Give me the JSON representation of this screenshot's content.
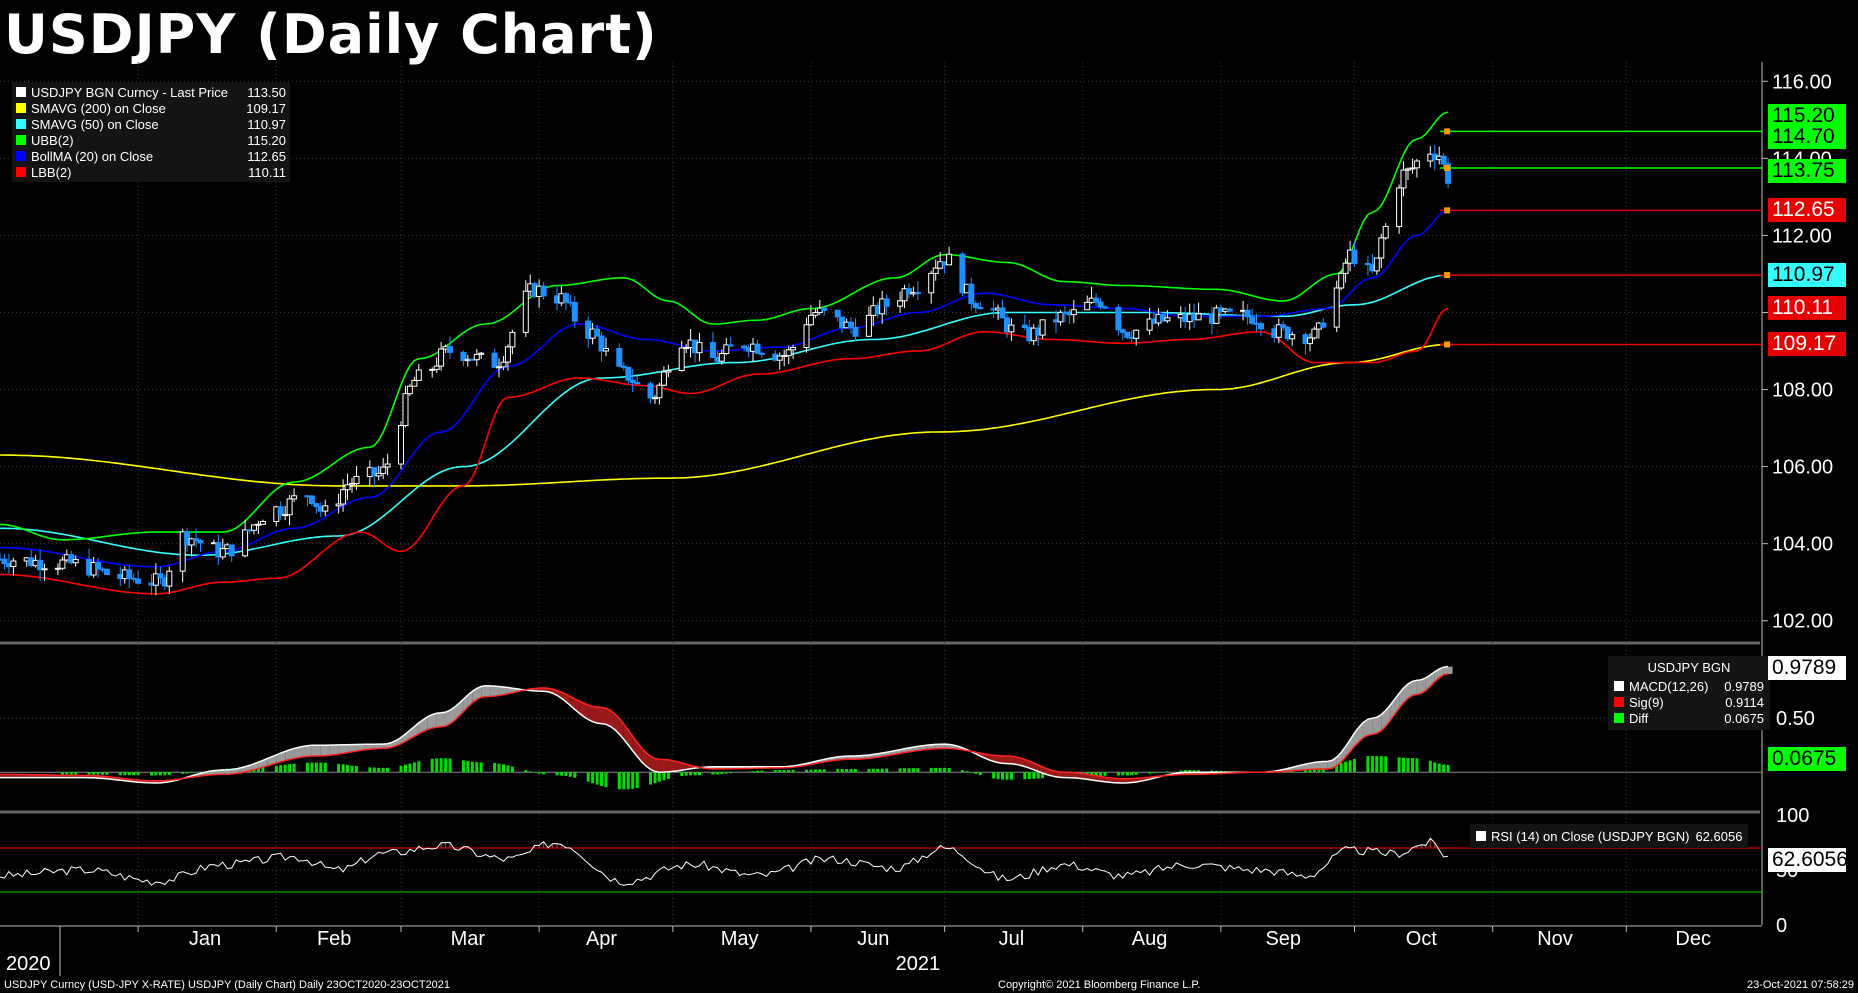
{
  "title": "USDJPY (Daily Chart)",
  "price_legend": [
    {
      "label": "USDJPY BGN Curncy - Last Price",
      "value": "113.50",
      "color": "#ffffff"
    },
    {
      "label": "SMAVG (200)  on Close",
      "value": "109.17",
      "color": "#ffff00"
    },
    {
      "label": "SMAVG (50)  on Close",
      "value": "110.97",
      "color": "#33ffff"
    },
    {
      "label": "UBB(2)",
      "value": "115.20",
      "color": "#00ff00"
    },
    {
      "label": "BollMA (20)  on Close",
      "value": "112.65",
      "color": "#0000ff"
    },
    {
      "label": "LBB(2)",
      "value": "110.11",
      "color": "#ff0000"
    }
  ],
  "price_tags": [
    {
      "text": "115.20",
      "value": 115.2,
      "bg": "#00ff00",
      "fg": "#000000"
    },
    {
      "text": "114.70",
      "value": 114.7,
      "bg": "#00ff00",
      "fg": "#000000"
    },
    {
      "text": "113.75",
      "value": 113.75,
      "bg": "#00ff00",
      "fg": "#000000"
    },
    {
      "text": "112.65",
      "value": 112.65,
      "bg": "#e60000",
      "fg": "#ffffff"
    },
    {
      "text": "110.97",
      "value": 110.97,
      "bg": "#33ffff",
      "fg": "#000000"
    },
    {
      "text": "110.11",
      "value": 110.11,
      "bg": "#e60000",
      "fg": "#ffffff"
    },
    {
      "text": "109.17",
      "value": 109.17,
      "bg": "#e60000",
      "fg": "#ffffff"
    }
  ],
  "macd_legend": {
    "heading": "USDJPY BGN",
    "rows": [
      {
        "label": "MACD(12,26)",
        "value": "0.9789",
        "color": "#ffffff"
      },
      {
        "label": "Sig(9)",
        "value": "0.9114",
        "color": "#ff0000"
      },
      {
        "label": "Diff",
        "value": "0.0675",
        "color": "#00ff00"
      }
    ]
  },
  "macd_tags": [
    {
      "text": "0.9789",
      "value": 0.9789,
      "bg": "#ffffff",
      "fg": "#000000"
    },
    {
      "text": "0.0675",
      "value": 0.0675,
      "bg": "#00ff00",
      "fg": "#000000"
    }
  ],
  "rsi_legend": {
    "label": "RSI (14)  on Close (USDJPY BGN)",
    "value": "62.6056",
    "color": "#ffffff"
  },
  "rsi_tag": {
    "text": "62.6056",
    "value": 62.6056,
    "bg": "#ffffff",
    "fg": "#000000"
  },
  "x_months": [
    "Jan",
    "Feb",
    "Mar",
    "Apr",
    "May",
    "Jun",
    "Jul",
    "Aug",
    "Sep",
    "Oct",
    "Nov",
    "Dec"
  ],
  "x_years": [
    "2020",
    "2021"
  ],
  "footer": {
    "left": "USDJPY Curncy (USD-JPY X-RATE) USDJPY (Daily Chart)  Daily 23OCT2020-23OCT2021",
    "center": "Copyright© 2021 Bloomberg Finance L.P.",
    "right": "23-Oct-2021 07:58:29"
  },
  "chart_data": {
    "type": "candlestick",
    "title": "USDJPY (Daily Chart)",
    "price_axis": {
      "ylim": [
        101.5,
        116.5
      ],
      "ticks": [
        "116.00",
        "114.00",
        "112.00",
        "110.00",
        "108.00",
        "106.00",
        "104.00",
        "102.00"
      ]
    },
    "macd_axis": {
      "ylim": [
        -0.35,
        1.15
      ],
      "ticks": [
        "0.50"
      ]
    },
    "rsi_axis": {
      "ylim": [
        0,
        100
      ],
      "ticks": [
        "100",
        "50",
        "0"
      ],
      "overbought": 70,
      "oversold": 30
    },
    "x_range": [
      "2020-12-01",
      "2021-12-31"
    ],
    "price_keypoints": [
      [
        "2020-12-01",
        103.6
      ],
      [
        "2020-12-15",
        103.5
      ],
      [
        "2020-12-31",
        103.1
      ],
      [
        "2021-01-06",
        103.0
      ],
      [
        "2021-01-11",
        104.2
      ],
      [
        "2021-01-20",
        103.8
      ],
      [
        "2021-02-01",
        104.9
      ],
      [
        "2021-02-08",
        105.3
      ],
      [
        "2021-02-12",
        104.8
      ],
      [
        "2021-02-18",
        105.6
      ],
      [
        "2021-02-24",
        105.8
      ],
      [
        "2021-03-05",
        108.3
      ],
      [
        "2021-03-12",
        109.0
      ],
      [
        "2021-03-22",
        108.7
      ],
      [
        "2021-03-31",
        110.6
      ],
      [
        "2021-04-05",
        110.4
      ],
      [
        "2021-04-12",
        109.5
      ],
      [
        "2021-04-20",
        108.4
      ],
      [
        "2021-04-26",
        107.8
      ],
      [
        "2021-05-03",
        109.3
      ],
      [
        "2021-05-10",
        108.8
      ],
      [
        "2021-05-17",
        109.2
      ],
      [
        "2021-05-26",
        108.9
      ],
      [
        "2021-06-02",
        110.0
      ],
      [
        "2021-06-11",
        109.6
      ],
      [
        "2021-06-18",
        110.2
      ],
      [
        "2021-06-24",
        110.7
      ],
      [
        "2021-07-01",
        111.4
      ],
      [
        "2021-07-08",
        110.3
      ],
      [
        "2021-07-19",
        109.4
      ],
      [
        "2021-07-28",
        109.9
      ],
      [
        "2021-08-05",
        110.3
      ],
      [
        "2021-08-11",
        109.5
      ],
      [
        "2021-08-20",
        109.8
      ],
      [
        "2021-08-31",
        109.9
      ],
      [
        "2021-09-08",
        109.9
      ],
      [
        "2021-09-14",
        109.5
      ],
      [
        "2021-09-22",
        109.4
      ],
      [
        "2021-09-27",
        110.6
      ],
      [
        "2021-09-30",
        111.5
      ],
      [
        "2021-10-05",
        111.0
      ],
      [
        "2021-10-08",
        112.2
      ],
      [
        "2021-10-12",
        113.6
      ],
      [
        "2021-10-18",
        114.2
      ],
      [
        "2021-10-20",
        114.1
      ],
      [
        "2021-10-22",
        113.5
      ]
    ],
    "series": [
      {
        "name": "SMAVG (200)  on Close",
        "color": "#ffff00",
        "values": [
          [
            "2020-12-01",
            106.3
          ],
          [
            "2021-02-15",
            105.5
          ],
          [
            "2021-03-15",
            105.5
          ],
          [
            "2021-04-30",
            105.7
          ],
          [
            "2021-06-30",
            106.9
          ],
          [
            "2021-08-31",
            108.0
          ],
          [
            "2021-09-30",
            108.7
          ],
          [
            "2021-10-22",
            109.17
          ]
        ]
      },
      {
        "name": "SMAVG (50)  on Close",
        "color": "#33ffff",
        "values": [
          [
            "2020-12-01",
            104.4
          ],
          [
            "2021-01-15",
            103.7
          ],
          [
            "2021-02-15",
            104.2
          ],
          [
            "2021-03-15",
            106.0
          ],
          [
            "2021-04-15",
            108.3
          ],
          [
            "2021-05-15",
            108.7
          ],
          [
            "2021-06-15",
            109.3
          ],
          [
            "2021-07-15",
            110.0
          ],
          [
            "2021-08-15",
            110.0
          ],
          [
            "2021-09-15",
            109.9
          ],
          [
            "2021-10-01",
            110.2
          ],
          [
            "2021-10-22",
            110.97
          ]
        ]
      },
      {
        "name": "UBB(2)",
        "color": "#00ff00",
        "values": [
          [
            "2020-12-01",
            104.5
          ],
          [
            "2020-12-15",
            104.1
          ],
          [
            "2021-01-05",
            104.3
          ],
          [
            "2021-01-20",
            104.3
          ],
          [
            "2021-02-05",
            105.6
          ],
          [
            "2021-02-22",
            106.5
          ],
          [
            "2021-03-05",
            108.8
          ],
          [
            "2021-03-20",
            109.7
          ],
          [
            "2021-04-05",
            110.7
          ],
          [
            "2021-04-20",
            110.9
          ],
          [
            "2021-04-30",
            110.3
          ],
          [
            "2021-05-10",
            109.7
          ],
          [
            "2021-05-20",
            109.8
          ],
          [
            "2021-06-01",
            110.1
          ],
          [
            "2021-06-20",
            110.9
          ],
          [
            "2021-07-01",
            111.5
          ],
          [
            "2021-07-15",
            111.3
          ],
          [
            "2021-07-28",
            110.8
          ],
          [
            "2021-08-10",
            110.7
          ],
          [
            "2021-08-31",
            110.6
          ],
          [
            "2021-09-15",
            110.3
          ],
          [
            "2021-09-27",
            111.0
          ],
          [
            "2021-10-05",
            112.6
          ],
          [
            "2021-10-15",
            114.5
          ],
          [
            "2021-10-22",
            115.2
          ]
        ]
      },
      {
        "name": "BollMA (20)  on Close",
        "color": "#0000ff",
        "values": [
          [
            "2020-12-01",
            103.9
          ],
          [
            "2021-01-05",
            103.4
          ],
          [
            "2021-01-20",
            103.8
          ],
          [
            "2021-02-05",
            104.4
          ],
          [
            "2021-02-22",
            105.2
          ],
          [
            "2021-03-10",
            106.9
          ],
          [
            "2021-03-25",
            108.6
          ],
          [
            "2021-04-10",
            109.7
          ],
          [
            "2021-04-25",
            109.3
          ],
          [
            "2021-05-10",
            109.0
          ],
          [
            "2021-05-25",
            109.1
          ],
          [
            "2021-06-10",
            109.6
          ],
          [
            "2021-06-25",
            110.0
          ],
          [
            "2021-07-10",
            110.5
          ],
          [
            "2021-07-25",
            110.2
          ],
          [
            "2021-08-10",
            110.1
          ],
          [
            "2021-08-25",
            109.9
          ],
          [
            "2021-09-10",
            109.9
          ],
          [
            "2021-09-25",
            110.1
          ],
          [
            "2021-10-05",
            110.9
          ],
          [
            "2021-10-15",
            112.0
          ],
          [
            "2021-10-22",
            112.65
          ]
        ]
      },
      {
        "name": "LBB(2)",
        "color": "#ff0000",
        "values": [
          [
            "2020-12-01",
            103.2
          ],
          [
            "2021-01-05",
            102.7
          ],
          [
            "2021-01-20",
            103.0
          ],
          [
            "2021-02-01",
            103.1
          ],
          [
            "2021-02-20",
            104.3
          ],
          [
            "2021-03-01",
            103.8
          ],
          [
            "2021-03-15",
            105.5
          ],
          [
            "2021-03-25",
            107.8
          ],
          [
            "2021-04-10",
            108.3
          ],
          [
            "2021-04-25",
            108.1
          ],
          [
            "2021-05-05",
            107.9
          ],
          [
            "2021-05-20",
            108.4
          ],
          [
            "2021-06-10",
            108.8
          ],
          [
            "2021-06-25",
            109.0
          ],
          [
            "2021-07-10",
            109.5
          ],
          [
            "2021-07-25",
            109.3
          ],
          [
            "2021-08-10",
            109.2
          ],
          [
            "2021-08-25",
            109.3
          ],
          [
            "2021-09-10",
            109.5
          ],
          [
            "2021-09-22",
            108.7
          ],
          [
            "2021-10-05",
            108.7
          ],
          [
            "2021-10-15",
            109.0
          ],
          [
            "2021-10-22",
            110.11
          ]
        ]
      }
    ],
    "macd": {
      "macd_line": [
        [
          "2020-12-01",
          -0.05
        ],
        [
          "2020-12-20",
          -0.05
        ],
        [
          "2021-01-05",
          -0.1
        ],
        [
          "2021-01-20",
          0.02
        ],
        [
          "2021-02-10",
          0.25
        ],
        [
          "2021-02-25",
          0.26
        ],
        [
          "2021-03-10",
          0.55
        ],
        [
          "2021-03-20",
          0.8
        ],
        [
          "2021-04-02",
          0.75
        ],
        [
          "2021-04-15",
          0.45
        ],
        [
          "2021-04-28",
          0.0
        ],
        [
          "2021-05-10",
          0.05
        ],
        [
          "2021-05-25",
          0.05
        ],
        [
          "2021-06-10",
          0.15
        ],
        [
          "2021-07-01",
          0.26
        ],
        [
          "2021-07-15",
          0.08
        ],
        [
          "2021-07-28",
          -0.05
        ],
        [
          "2021-08-10",
          -0.1
        ],
        [
          "2021-08-25",
          0.0
        ],
        [
          "2021-09-10",
          0.0
        ],
        [
          "2021-09-25",
          0.1
        ],
        [
          "2021-10-05",
          0.5
        ],
        [
          "2021-10-15",
          0.85
        ],
        [
          "2021-10-22",
          0.9789
        ]
      ],
      "signal_line": [
        [
          "2020-12-01",
          -0.02
        ],
        [
          "2020-12-20",
          -0.03
        ],
        [
          "2021-01-05",
          -0.08
        ],
        [
          "2021-01-20",
          -0.02
        ],
        [
          "2021-02-10",
          0.15
        ],
        [
          "2021-02-25",
          0.22
        ],
        [
          "2021-03-10",
          0.42
        ],
        [
          "2021-03-20",
          0.7
        ],
        [
          "2021-04-02",
          0.78
        ],
        [
          "2021-04-15",
          0.6
        ],
        [
          "2021-04-28",
          0.12
        ],
        [
          "2021-05-10",
          0.03
        ],
        [
          "2021-05-25",
          0.04
        ],
        [
          "2021-06-10",
          0.12
        ],
        [
          "2021-07-01",
          0.22
        ],
        [
          "2021-07-15",
          0.15
        ],
        [
          "2021-07-28",
          0.0
        ],
        [
          "2021-08-10",
          -0.06
        ],
        [
          "2021-08-25",
          -0.02
        ],
        [
          "2021-09-10",
          0.0
        ],
        [
          "2021-09-25",
          0.03
        ],
        [
          "2021-10-05",
          0.35
        ],
        [
          "2021-10-15",
          0.72
        ],
        [
          "2021-10-22",
          0.9114
        ]
      ],
      "diff_hist": [
        [
          "2020-12-15",
          -0.02
        ],
        [
          "2021-01-05",
          -0.03
        ],
        [
          "2021-01-25",
          0.04
        ],
        [
          "2021-02-10",
          0.09
        ],
        [
          "2021-02-25",
          0.04
        ],
        [
          "2021-03-10",
          0.13
        ],
        [
          "2021-03-20",
          0.09
        ],
        [
          "2021-04-05",
          -0.03
        ],
        [
          "2021-04-20",
          -0.16
        ],
        [
          "2021-05-05",
          -0.03
        ],
        [
          "2021-05-25",
          0.02
        ],
        [
          "2021-06-10",
          0.03
        ],
        [
          "2021-07-01",
          0.04
        ],
        [
          "2021-07-15",
          -0.07
        ],
        [
          "2021-07-28",
          -0.05
        ],
        [
          "2021-08-10",
          -0.03
        ],
        [
          "2021-08-25",
          0.02
        ],
        [
          "2021-09-10",
          0.0
        ],
        [
          "2021-09-25",
          0.07
        ],
        [
          "2021-10-05",
          0.15
        ],
        [
          "2021-10-15",
          0.13
        ],
        [
          "2021-10-22",
          0.0675
        ]
      ]
    },
    "rsi": [
      [
        "2020-12-01",
        45
      ],
      [
        "2020-12-20",
        50
      ],
      [
        "2021-01-05",
        40
      ],
      [
        "2021-01-20",
        55
      ],
      [
        "2021-02-05",
        62
      ],
      [
        "2021-02-15",
        50
      ],
      [
        "2021-02-25",
        65
      ],
      [
        "2021-03-10",
        72
      ],
      [
        "2021-03-25",
        60
      ],
      [
        "2021-04-05",
        75
      ],
      [
        "2021-04-20",
        40
      ],
      [
        "2021-05-05",
        55
      ],
      [
        "2021-05-20",
        45
      ],
      [
        "2021-06-05",
        60
      ],
      [
        "2021-06-20",
        52
      ],
      [
        "2021-07-01",
        70
      ],
      [
        "2021-07-15",
        42
      ],
      [
        "2021-07-28",
        55
      ],
      [
        "2021-08-10",
        45
      ],
      [
        "2021-08-25",
        55
      ],
      [
        "2021-09-10",
        50
      ],
      [
        "2021-09-20",
        45
      ],
      [
        "2021-09-30",
        68
      ],
      [
        "2021-10-10",
        65
      ],
      [
        "2021-10-18",
        75
      ],
      [
        "2021-10-22",
        62.6
      ]
    ]
  }
}
